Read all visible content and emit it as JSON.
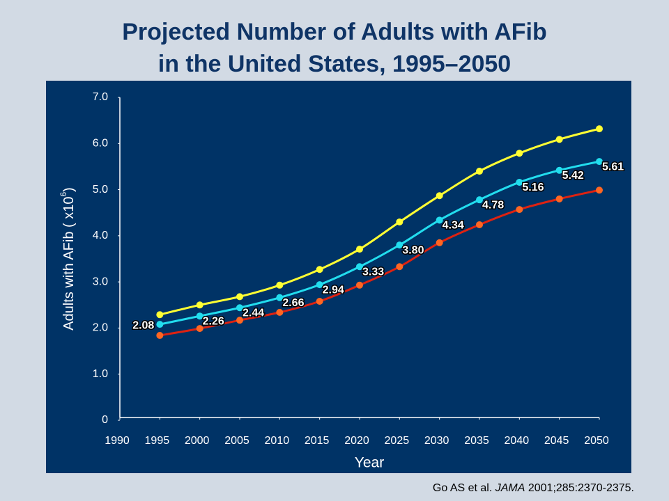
{
  "chart_data": {
    "type": "line",
    "title": [
      "Projected Number of Adults with AFib",
      "in the United States, 1995–2050"
    ],
    "xlabel": "Year",
    "ylabel_parts": [
      "Adults with AFib ( x10",
      "6",
      ")"
    ],
    "source_parts": [
      "Go AS et al. ",
      "JAMA",
      " 2001;285:2370-2375."
    ],
    "x": [
      1995,
      2000,
      2005,
      2010,
      2015,
      2020,
      2025,
      2030,
      2035,
      2040,
      2045,
      2050
    ],
    "series": [
      {
        "color": "#ffff33",
        "values": [
          2.29,
          2.5,
          2.68,
          2.93,
          3.27,
          3.71,
          4.3,
          4.87,
          5.4,
          5.79,
          6.09,
          6.32
        ]
      },
      {
        "color": "#22ddee",
        "values": [
          2.08,
          2.26,
          2.44,
          2.66,
          2.94,
          3.33,
          3.8,
          4.34,
          4.78,
          5.16,
          5.42,
          5.61
        ],
        "value_labels": [
          "2.08",
          "2.26",
          "2.44",
          "2.66",
          "2.94",
          "3.33",
          "3.80",
          "4.34",
          "4.78",
          "5.16",
          "5.42",
          "5.61"
        ]
      },
      {
        "color": "#dd2211",
        "marker_color": "#ff6622",
        "values": [
          1.84,
          1.99,
          2.17,
          2.34,
          2.58,
          2.93,
          3.33,
          3.85,
          4.24,
          4.57,
          4.8,
          4.99
        ]
      }
    ],
    "xlim": [
      1990,
      2050
    ],
    "xticks": [
      1990,
      1995,
      2000,
      2005,
      2010,
      2015,
      2020,
      2025,
      2030,
      2035,
      2040,
      2045,
      2050
    ],
    "ylim": [
      0,
      7
    ],
    "yticks": [
      0,
      {
        "value": 1,
        "label": "1.0"
      },
      {
        "value": 2,
        "label": "2.0"
      },
      {
        "value": 3,
        "label": "3.0"
      },
      {
        "value": 4,
        "label": "4.0"
      },
      {
        "value": 5,
        "label": "5.0"
      },
      {
        "value": 6,
        "label": "6.0"
      },
      {
        "value": 7,
        "label": "7.0"
      }
    ],
    "grid": false
  }
}
